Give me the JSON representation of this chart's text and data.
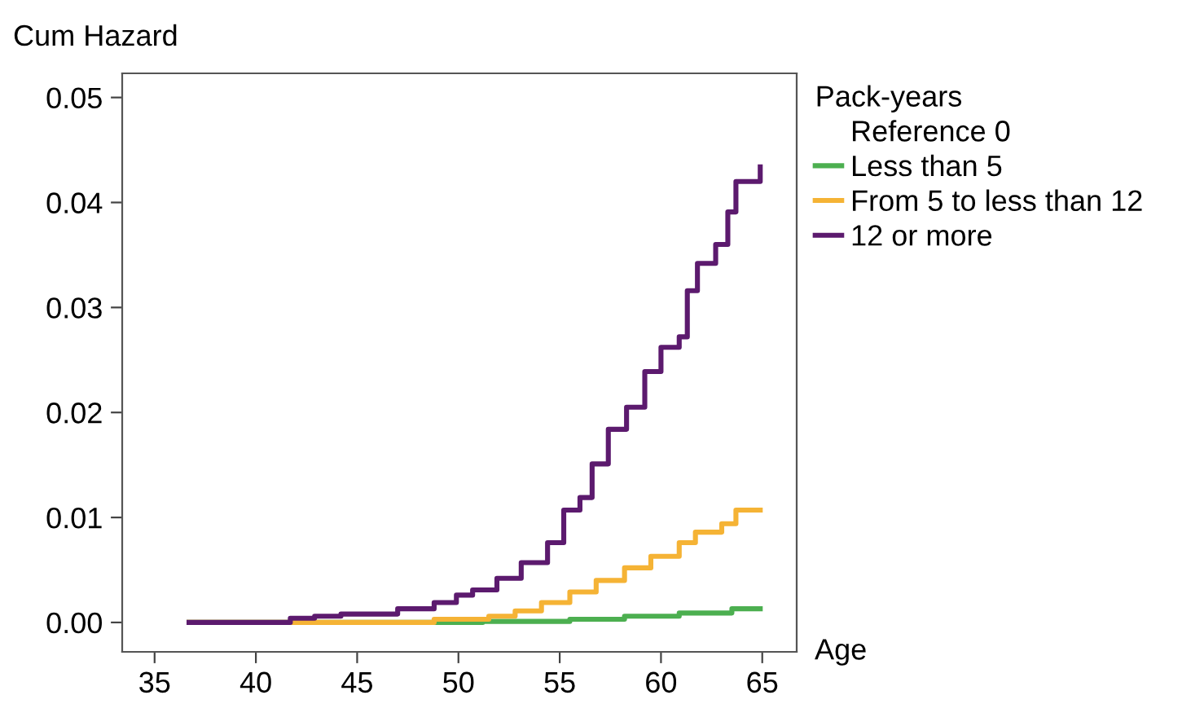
{
  "chart_data": {
    "type": "step",
    "ylabel": "Cum Hazard",
    "xlabel": "Age",
    "legend_title": "Pack-years",
    "legend": "right",
    "grid": false,
    "marker": "none",
    "line_style": "solid",
    "xlim": [
      33.4,
      66.7
    ],
    "xticks": [
      35,
      40,
      45,
      50,
      55,
      60,
      65
    ],
    "ylim": [
      -0.0028,
      0.0523
    ],
    "yticks": [
      {
        "value": 0,
        "label": "0.00"
      },
      {
        "value": 0.01,
        "label": "0.01"
      },
      {
        "value": 0.02,
        "label": "0.02"
      },
      {
        "value": 0.03,
        "label": "0.03"
      },
      {
        "value": 0.04,
        "label": "0.04"
      },
      {
        "value": 0.05,
        "label": "0.05"
      }
    ],
    "series": [
      {
        "name": "Reference 0"
      },
      {
        "name": "Less than 5",
        "color": "#4caf50",
        "x": [
          36.7,
          51.2,
          55.5,
          58.2,
          60.9,
          63.5,
          64.9
        ],
        "values": [
          0,
          0.0001,
          0.0003,
          0.0006,
          0.0009,
          0.0013,
          0.0013
        ]
      },
      {
        "name": "From 5 to less than 12",
        "color": "#f5b335",
        "x": [
          36.7,
          48.8,
          51.5,
          52.8,
          54.1,
          55.5,
          56.8,
          58.2,
          59.5,
          60.9,
          61.7,
          63.0,
          63.7,
          64.9
        ],
        "values": [
          0,
          0.0003,
          0.0006,
          0.0011,
          0.0019,
          0.0029,
          0.004,
          0.0052,
          0.0063,
          0.0076,
          0.0086,
          0.0094,
          0.0107,
          0.0107
        ]
      },
      {
        "name": "12 or more",
        "color": "#5c1a6e",
        "x": [
          36.7,
          41.7,
          42.9,
          44.2,
          47.0,
          48.8,
          49.9,
          50.7,
          51.9,
          53.1,
          54.4,
          55.2,
          56.0,
          56.6,
          57.4,
          58.3,
          59.2,
          60.0,
          60.9,
          61.3,
          61.8,
          62.7,
          63.3,
          63.7,
          64.9
        ],
        "values": [
          0,
          0.0004,
          0.0006,
          0.0008,
          0.0013,
          0.0019,
          0.0026,
          0.0031,
          0.0042,
          0.0057,
          0.0076,
          0.0107,
          0.0119,
          0.0151,
          0.0184,
          0.0205,
          0.0239,
          0.0262,
          0.0272,
          0.0316,
          0.0342,
          0.036,
          0.0391,
          0.042,
          0.0434
        ]
      }
    ]
  }
}
